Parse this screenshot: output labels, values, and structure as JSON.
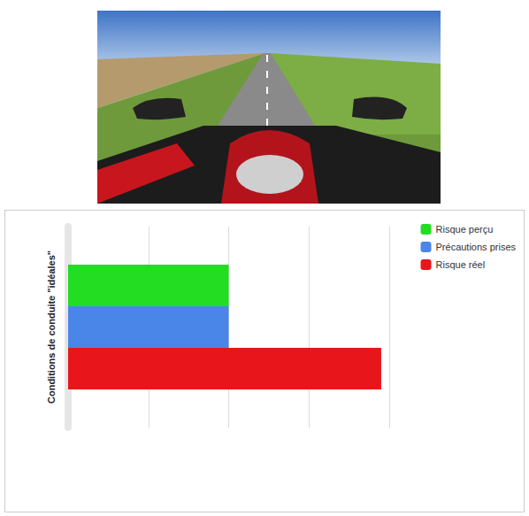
{
  "chart_data": {
    "type": "bar",
    "orientation": "horizontal",
    "categories": [
      "Conditions de conduite \"idéales\""
    ],
    "series": [
      {
        "name": "Risque perçu",
        "color": "#22dd22",
        "values": [
          2
        ]
      },
      {
        "name": "Précautions prises",
        "color": "#4a86e8",
        "values": [
          2
        ]
      },
      {
        "name": "Risque réel",
        "color": "#e8161a",
        "values": [
          3.9
        ]
      }
    ],
    "xlim": [
      0,
      4
    ],
    "xticks": [
      0,
      1,
      2,
      3,
      4
    ],
    "grid": true,
    "legend": "top-right",
    "tick_labels": "y"
  }
}
